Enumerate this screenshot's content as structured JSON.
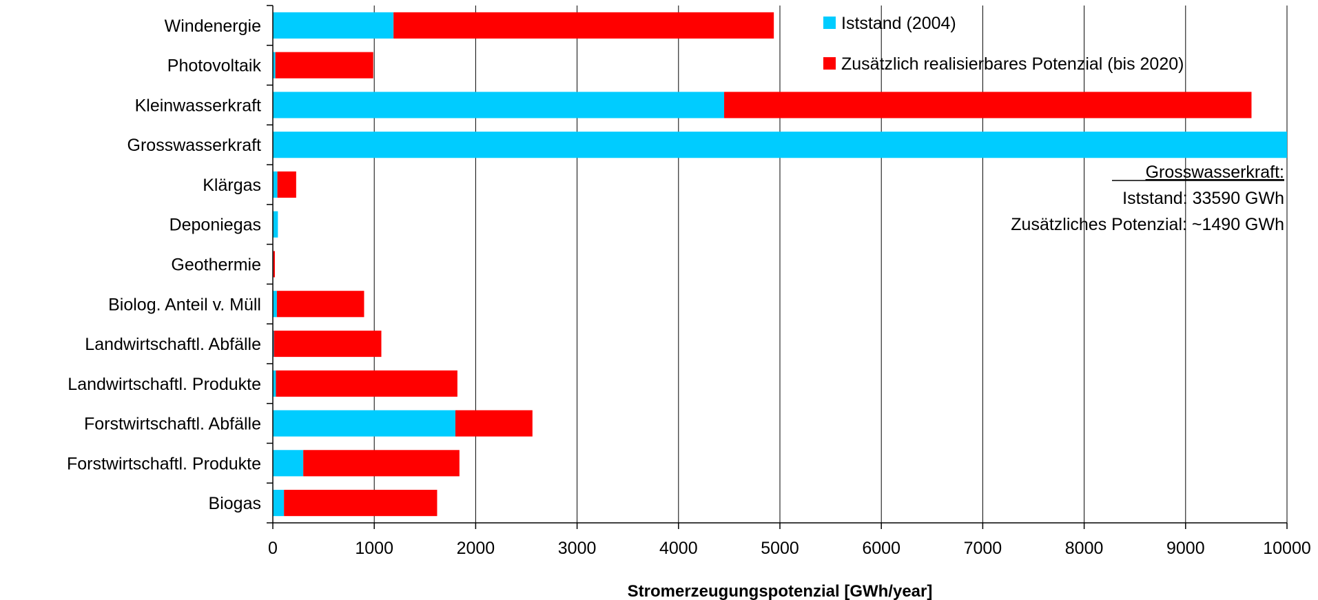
{
  "chart_data": {
    "type": "bar",
    "orientation": "horizontal",
    "stacked": true,
    "categories": [
      "Windenergie",
      "Photovoltaik",
      "Kleinwasserkraft",
      "Grosswasserkraft",
      "Klärgas",
      "Deponiegas",
      "Geothermie",
      "Biolog. Anteil v. Müll",
      "Landwirtschaftl. Abfälle",
      "Landwirtschaftl. Produkte",
      "Forstwirtschaftl. Abfälle",
      "Forstwirtschaftl. Produkte",
      "Biogas"
    ],
    "series": [
      {
        "name": "Iststand (2004)",
        "color": "#00CCFF",
        "values": [
          1190,
          25,
          4450,
          10000,
          45,
          50,
          5,
          40,
          10,
          30,
          1800,
          300,
          110
        ]
      },
      {
        "name": "Zusätzlich realisierbares Potenzial (bis 2020)",
        "color": "#FF0000",
        "values": [
          3750,
          965,
          5200,
          0,
          185,
          0,
          15,
          860,
          1060,
          1790,
          760,
          1540,
          1510
        ]
      }
    ],
    "xlabel": "Stromerzeugungspotenzial [GWh/year]",
    "ylabel": "",
    "xlim": [
      0,
      10000
    ],
    "xticks": [
      "0",
      "1000",
      "2000",
      "3000",
      "4000",
      "5000",
      "6000",
      "7000",
      "8000",
      "9000",
      "10000"
    ],
    "grid": "vertical",
    "legend_position": "top-right",
    "annotation": {
      "title": "Grosswasserkraft:",
      "line1": "Iststand: 33590 GWh",
      "line2": "Zusätzliches Potenzial: ~1490 GWh"
    }
  }
}
